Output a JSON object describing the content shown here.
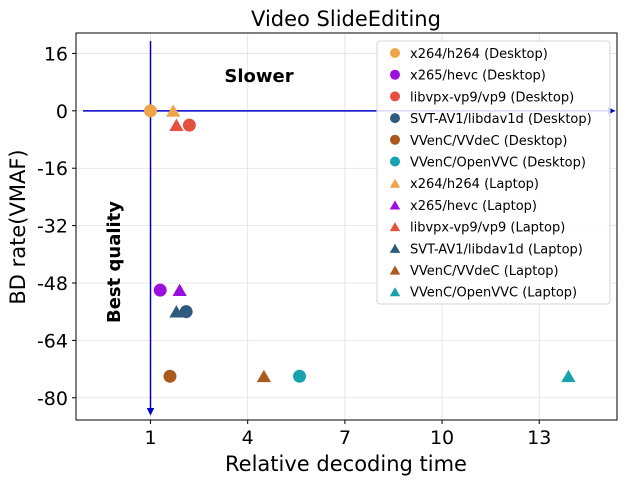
{
  "chart_data": {
    "type": "scatter",
    "title": "Video SlideEditing",
    "xlabel": "Relative decoding time",
    "ylabel": "BD rate(VMAF)",
    "xlim": [
      -1.3,
      15.4
    ],
    "ylim": [
      -86.2,
      21.7
    ],
    "xticks": [
      1,
      4,
      7,
      10,
      13
    ],
    "xtick_labels": [
      "1",
      "4",
      "7",
      "10",
      "13"
    ],
    "yticks": [
      16,
      0,
      -16,
      -32,
      -48,
      -64,
      -80
    ],
    "ytick_labels": [
      "16",
      "0",
      "-16",
      "-32",
      "-48",
      "-64",
      "-80"
    ],
    "grid": true,
    "legend_position": "top-right",
    "annotations": {
      "slower": "Slower",
      "best_quality": "Best quality"
    },
    "series": [
      {
        "name": "x264/h264 (Desktop)",
        "marker": "circle",
        "color": "#f0a44a",
        "x": [
          1.0
        ],
        "y": [
          0
        ]
      },
      {
        "name": "x265/hevc (Desktop)",
        "marker": "circle",
        "color": "#9b0fdc",
        "x": [
          1.3
        ],
        "y": [
          -50
        ]
      },
      {
        "name": "libvpx-vp9/vp9 (Desktop)",
        "marker": "circle",
        "color": "#e5503f",
        "x": [
          2.2
        ],
        "y": [
          -4
        ]
      },
      {
        "name": "SVT-AV1/libdav1d (Desktop)",
        "marker": "circle",
        "color": "#2f5a80",
        "x": [
          2.1
        ],
        "y": [
          -56
        ]
      },
      {
        "name": "VVenC/VVdeC (Desktop)",
        "marker": "circle",
        "color": "#ab5a1e",
        "x": [
          1.6
        ],
        "y": [
          -74
        ]
      },
      {
        "name": "VVenC/OpenVVC (Desktop)",
        "marker": "circle",
        "color": "#17a3ae",
        "x": [
          5.6
        ],
        "y": [
          -74
        ]
      },
      {
        "name": "x264/h264 (Laptop)",
        "marker": "triangle",
        "color": "#f0a44a",
        "x": [
          1.7
        ],
        "y": [
          0
        ]
      },
      {
        "name": "x265/hevc (Laptop)",
        "marker": "triangle",
        "color": "#9b0fdc",
        "x": [
          1.9
        ],
        "y": [
          -50
        ]
      },
      {
        "name": "libvpx-vp9/vp9 (Laptop)",
        "marker": "triangle",
        "color": "#e5503f",
        "x": [
          1.8
        ],
        "y": [
          -4
        ]
      },
      {
        "name": "SVT-AV1/libdav1d (Laptop)",
        "marker": "triangle",
        "color": "#2f5a80",
        "x": [
          1.8
        ],
        "y": [
          -56
        ]
      },
      {
        "name": "VVenC/VVdeC (Laptop)",
        "marker": "triangle",
        "color": "#ab5a1e",
        "x": [
          4.5
        ],
        "y": [
          -74
        ]
      },
      {
        "name": "VVenC/OpenVVC (Laptop)",
        "marker": "triangle",
        "color": "#17a3ae",
        "x": [
          13.9
        ],
        "y": [
          -74
        ]
      }
    ]
  }
}
